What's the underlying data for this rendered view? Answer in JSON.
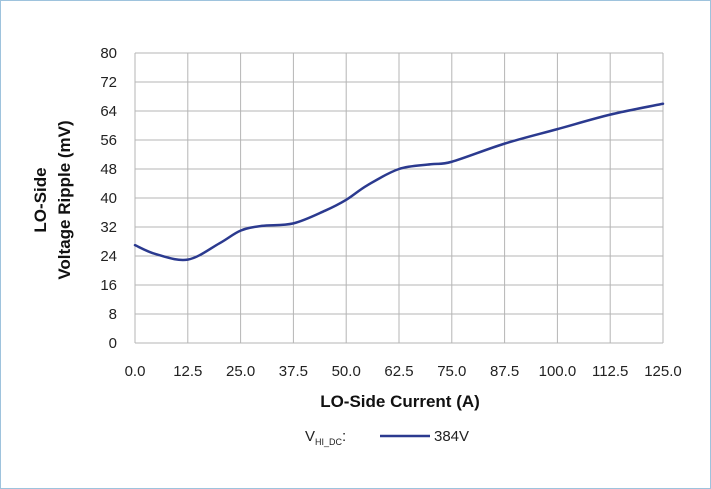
{
  "chart_data": {
    "type": "line",
    "xlabel": "LO-Side Current (A)",
    "ylabel_line1": "LO-Side",
    "ylabel_line2": "Voltage Ripple (mV)",
    "xlim": [
      0,
      125
    ],
    "ylim": [
      0,
      80
    ],
    "x_ticks": [
      "0.0",
      "12.5",
      "25.0",
      "37.5",
      "50.0",
      "62.5",
      "75.0",
      "87.5",
      "100.0",
      "112.5",
      "125.0"
    ],
    "y_ticks": [
      "0",
      "8",
      "16",
      "24",
      "32",
      "40",
      "48",
      "56",
      "64",
      "72",
      "80"
    ],
    "grid": true,
    "legend": {
      "prefix_main": "V",
      "prefix_sub": "HI_DC",
      "prefix_suffix": ":",
      "placement": "bottom-center"
    },
    "series": [
      {
        "name": "384V",
        "color": "#2b3a8f",
        "x": [
          0,
          5,
          12.5,
          20,
          25,
          30,
          37.5,
          45,
          50,
          55,
          62.5,
          70,
          75,
          87.5,
          100,
          112.5,
          125
        ],
        "y": [
          27,
          24.5,
          23,
          27.5,
          31,
          32.3,
          33,
          36.5,
          39.5,
          43.5,
          48,
          49.3,
          50,
          55,
          59,
          63,
          66
        ]
      }
    ]
  }
}
